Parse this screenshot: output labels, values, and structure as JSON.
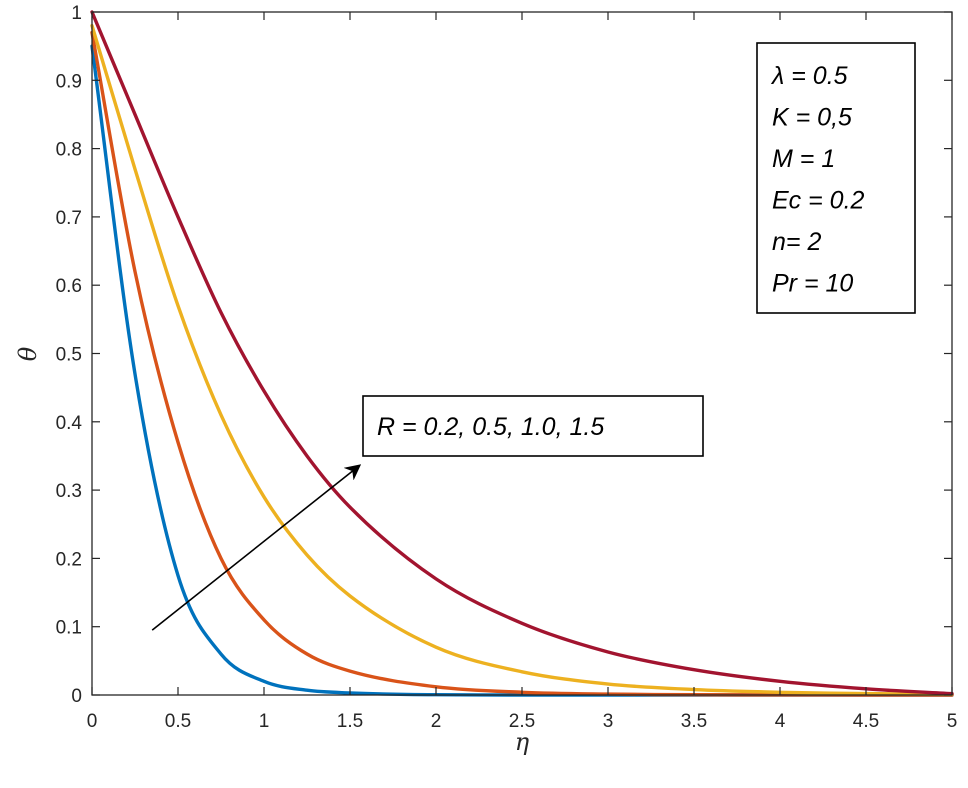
{
  "chart_data": {
    "type": "line",
    "title": "",
    "xlabel": "η",
    "ylabel": "θ",
    "xlim": [
      0,
      5
    ],
    "ylim": [
      0,
      1
    ],
    "xticks": [
      0,
      0.5,
      1,
      1.5,
      2,
      2.5,
      3,
      3.5,
      4,
      4.5,
      5
    ],
    "xtick_labels": [
      "0",
      "0.5",
      "1",
      "1.5",
      "2",
      "2.5",
      "3",
      "3.5",
      "4",
      "4.5",
      "5"
    ],
    "yticks": [
      0,
      0.1,
      0.2,
      0.3,
      0.4,
      0.5,
      0.6,
      0.7,
      0.8,
      0.9,
      1
    ],
    "ytick_labels": [
      "0",
      "0.1",
      "0.2",
      "0.3",
      "0.4",
      "0.5",
      "0.6",
      "0.7",
      "0.8",
      "0.9",
      "1"
    ],
    "grid": false,
    "x": [
      0,
      0.25,
      0.5,
      0.75,
      1,
      1.25,
      1.5,
      2,
      2.5,
      3,
      3.5,
      4,
      4.5,
      5
    ],
    "series": [
      {
        "color": "#0072BD",
        "values": [
          0.95,
          0.47,
          0.175,
          0.06,
          0.02,
          0.007,
          0.003,
          0.0004,
          0,
          0,
          0,
          0,
          0,
          0
        ]
      },
      {
        "color": "#D95319",
        "values": [
          0.97,
          0.62,
          0.37,
          0.2,
          0.11,
          0.06,
          0.035,
          0.012,
          0.004,
          0.0013,
          0.0004,
          0.0001,
          0,
          0
        ]
      },
      {
        "color": "#EDB120",
        "values": [
          0.98,
          0.77,
          0.57,
          0.41,
          0.29,
          0.205,
          0.145,
          0.07,
          0.034,
          0.016,
          0.008,
          0.004,
          0.002,
          0.001
        ]
      },
      {
        "color": "#A2142F",
        "values": [
          1.0,
          0.85,
          0.7,
          0.56,
          0.445,
          0.35,
          0.275,
          0.17,
          0.105,
          0.063,
          0.037,
          0.02,
          0.009,
          0.002
        ]
      }
    ],
    "annotations": {
      "params_box": [
        "λ = 0.5",
        "K = 0,5",
        "M = 1",
        "Ec = 0.2",
        "n= 2",
        "Pr = 10"
      ],
      "arrow_label": "R = 0.2, 0.5, 1.0, 1.5",
      "arrow": {
        "from": [
          0.35,
          0.095
        ],
        "to": [
          1.55,
          0.335
        ]
      }
    }
  }
}
